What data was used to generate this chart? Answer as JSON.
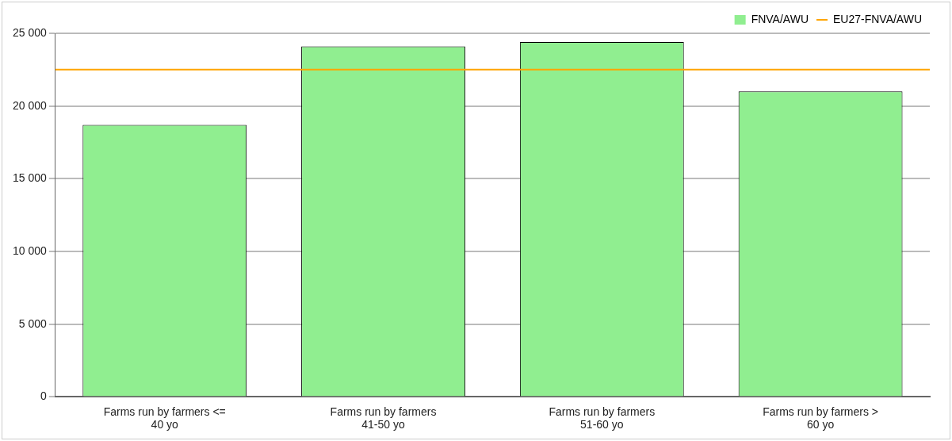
{
  "chart_data": {
    "type": "bar",
    "categories": [
      "Farms run by farmers <= 40 yo",
      "Farms run by farmers 41-50 yo",
      "Farms run by farmers 51-60 yo",
      "Farms run by farmers > 60 yo"
    ],
    "series": [
      {
        "name": "FNVA/AWU",
        "color": "#90ee90",
        "values": [
          18700,
          24100,
          24400,
          21000
        ]
      }
    ],
    "ref_lines": [
      {
        "axis": "y",
        "value": 22500,
        "label": "EU27-FNVA/AWU",
        "color": "#ffa500"
      }
    ],
    "ylim": [
      0,
      25000
    ],
    "yticks": [
      {
        "value": 0,
        "label": "0"
      },
      {
        "value": 5000,
        "label": "5 000"
      },
      {
        "value": 10000,
        "label": "10 000"
      },
      {
        "value": 15000,
        "label": "15 000"
      },
      {
        "value": 20000,
        "label": "20 000"
      },
      {
        "value": 25000,
        "label": "25 000"
      }
    ],
    "grid": "y",
    "legend": "top right"
  }
}
